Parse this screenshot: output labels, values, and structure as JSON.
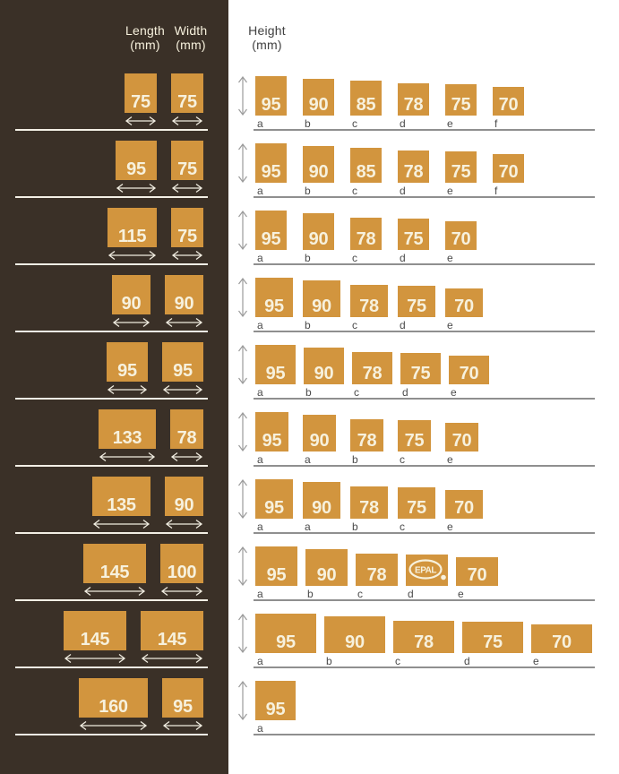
{
  "colors": {
    "panel_brown": "#3A3027",
    "white": "#FFFFFF",
    "block_orange": "#D2953E",
    "block_text": "#F7F1DD",
    "left_line": "#F3EFE5",
    "left_arrow": "#F0ECE0",
    "right_line": "#8F8F8F",
    "right_arrow": "#9B9B9B",
    "letter_grey": "#4B4B4B",
    "header_dark": "#414141"
  },
  "headers": {
    "length": "Length",
    "length_unit": "(mm)",
    "width": "Width",
    "width_unit": "(mm)",
    "height": "Height",
    "height_unit": "(mm)"
  },
  "epal_label": "EPAL",
  "rows": [
    {
      "length": "75",
      "width": "75",
      "heights": [
        {
          "value": "95",
          "label": "a"
        },
        {
          "value": "90",
          "label": "b"
        },
        {
          "value": "85",
          "label": "c"
        },
        {
          "value": "78",
          "label": "d"
        },
        {
          "value": "75",
          "label": "e"
        },
        {
          "value": "70",
          "label": "f"
        }
      ]
    },
    {
      "length": "95",
      "width": "75",
      "heights": [
        {
          "value": "95",
          "label": "a"
        },
        {
          "value": "90",
          "label": "b"
        },
        {
          "value": "85",
          "label": "c"
        },
        {
          "value": "78",
          "label": "d"
        },
        {
          "value": "75",
          "label": "e"
        },
        {
          "value": "70",
          "label": "f"
        }
      ]
    },
    {
      "length": "115",
      "width": "75",
      "heights": [
        {
          "value": "95",
          "label": "a"
        },
        {
          "value": "90",
          "label": "b"
        },
        {
          "value": "78",
          "label": "c"
        },
        {
          "value": "75",
          "label": "d"
        },
        {
          "value": "70",
          "label": "e"
        }
      ]
    },
    {
      "length": "90",
      "width": "90",
      "heights": [
        {
          "value": "95",
          "label": "a"
        },
        {
          "value": "90",
          "label": "b"
        },
        {
          "value": "78",
          "label": "c"
        },
        {
          "value": "75",
          "label": "d"
        },
        {
          "value": "70",
          "label": "e"
        }
      ]
    },
    {
      "length": "95",
      "width": "95",
      "heights": [
        {
          "value": "95",
          "label": "a"
        },
        {
          "value": "90",
          "label": "b"
        },
        {
          "value": "78",
          "label": "c"
        },
        {
          "value": "75",
          "label": "d"
        },
        {
          "value": "70",
          "label": "e"
        }
      ]
    },
    {
      "length": "133",
      "width": "78",
      "heights": [
        {
          "value": "95",
          "label": "a"
        },
        {
          "value": "90",
          "label": "a"
        },
        {
          "value": "78",
          "label": "b"
        },
        {
          "value": "75",
          "label": "c"
        },
        {
          "value": "70",
          "label": "e"
        }
      ]
    },
    {
      "length": "135",
      "width": "90",
      "heights": [
        {
          "value": "95",
          "label": "a"
        },
        {
          "value": "90",
          "label": "a"
        },
        {
          "value": "78",
          "label": "b"
        },
        {
          "value": "75",
          "label": "c"
        },
        {
          "value": "70",
          "label": "e"
        }
      ]
    },
    {
      "length": "145",
      "width": "100",
      "heights": [
        {
          "value": "95",
          "label": "a"
        },
        {
          "value": "90",
          "label": "b"
        },
        {
          "value": "78",
          "label": "c"
        },
        {
          "value": "",
          "label": "d",
          "epal": true
        },
        {
          "value": "70",
          "label": "e"
        }
      ]
    },
    {
      "length": "145",
      "width": "145",
      "heights": [
        {
          "value": "95",
          "label": "a"
        },
        {
          "value": "90",
          "label": "b"
        },
        {
          "value": "78",
          "label": "c"
        },
        {
          "value": "75",
          "label": "d"
        },
        {
          "value": "70",
          "label": "e"
        }
      ]
    },
    {
      "length": "160",
      "width": "95",
      "heights": [
        {
          "value": "95",
          "label": "a"
        }
      ]
    }
  ]
}
